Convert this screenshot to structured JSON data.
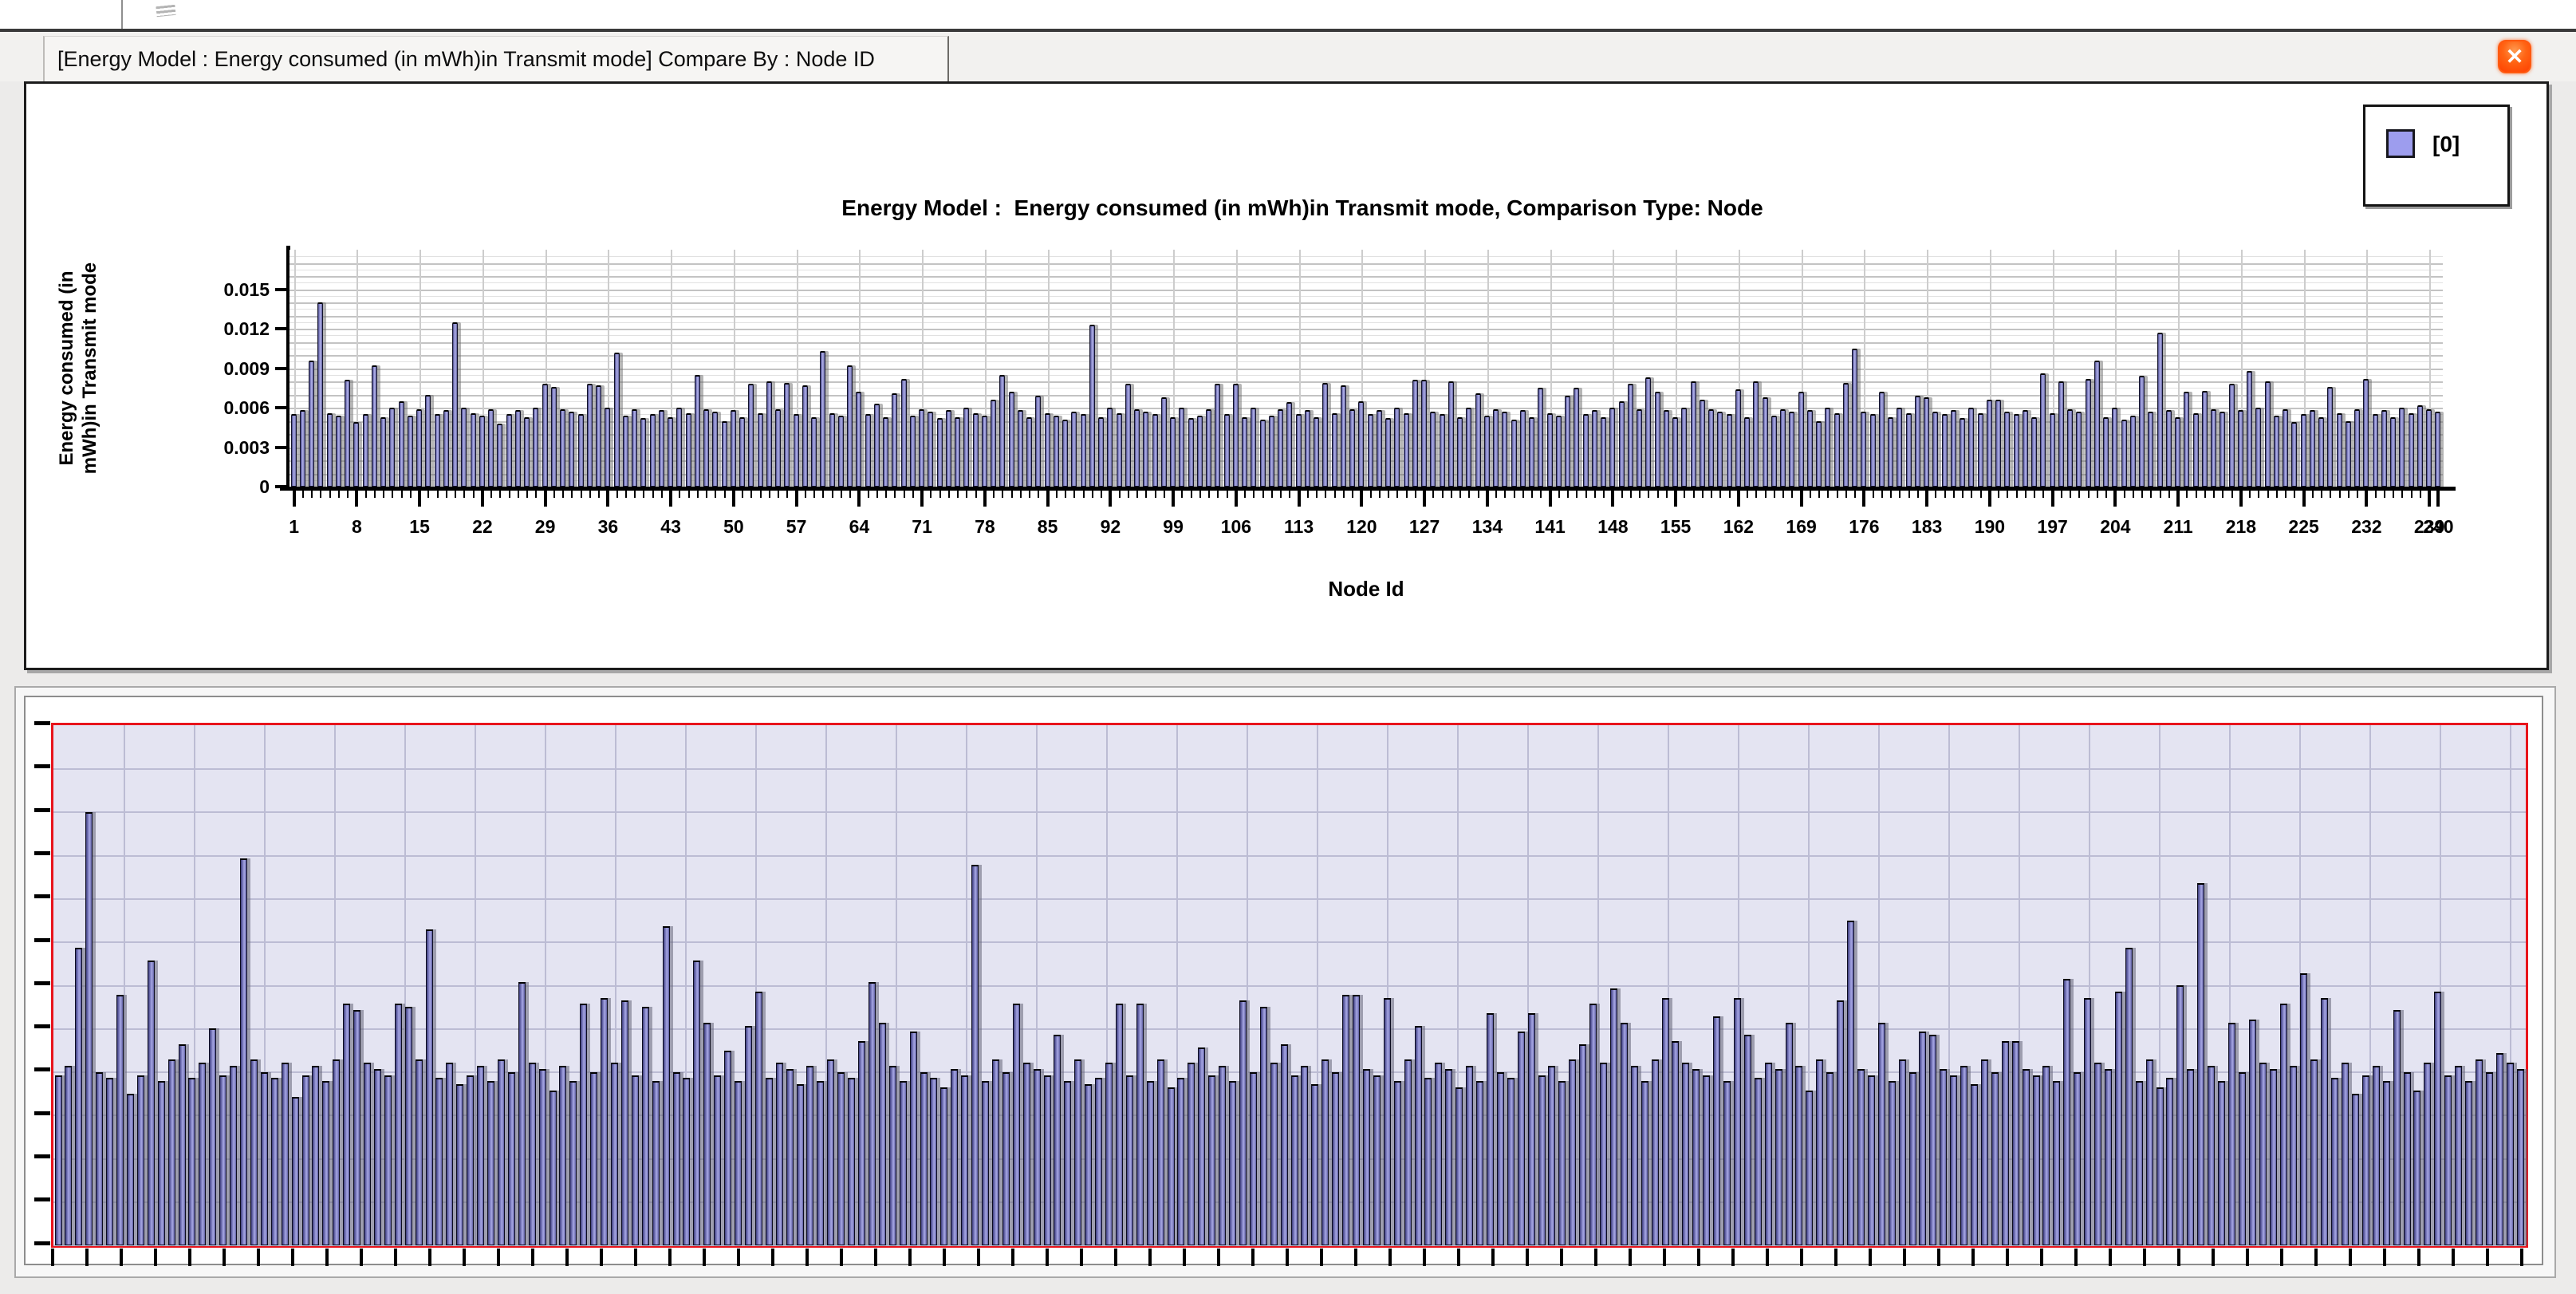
{
  "window": {
    "tab_title": "[Energy Model :  Energy consumed (in mWh)in Transmit mode] Compare By : Node ID",
    "close_glyph": "✕"
  },
  "legend": {
    "entries": [
      {
        "label": "[0]",
        "swatch_color": "#9d9dee"
      }
    ]
  },
  "chart_data": {
    "type": "bar",
    "title": "Energy Model :  Energy consumed (in mWh)in Transmit mode, Comparison Type: Node",
    "xlabel": "Node Id",
    "ylabel_lines": [
      "Energy consumed (in",
      "mWh)in Transmit mode"
    ],
    "y_ticks": [
      0,
      0.003,
      0.006,
      0.009,
      0.012,
      0.015
    ],
    "ylim": [
      0,
      0.018
    ],
    "n_nodes": 240,
    "first_node_id": 1,
    "grid": true,
    "legend_position": "top-right",
    "x_tick_nodes": [
      1,
      8,
      15,
      22,
      29,
      36,
      43,
      50,
      57,
      64,
      71,
      78,
      85,
      92,
      99,
      106,
      113,
      120,
      127,
      134,
      141,
      148,
      155,
      162,
      169,
      176,
      183,
      190,
      197,
      204,
      211,
      218,
      225,
      232,
      239,
      240
    ],
    "x_tick_labels": [
      "1",
      "8",
      "15",
      "22",
      "29",
      "36",
      "43",
      "50",
      "57",
      "64",
      "71",
      "78",
      "85",
      "92",
      "99",
      "106",
      "113",
      "120",
      "127",
      "134",
      "141",
      "148",
      "155",
      "162",
      "169",
      "176",
      "183",
      "190",
      "197",
      "204",
      "211",
      "218",
      "225",
      "232",
      "239",
      "240"
    ],
    "values": [
      0.0055,
      0.0058,
      0.0096,
      0.014,
      0.0056,
      0.0054,
      0.0081,
      0.0049,
      0.0055,
      0.0092,
      0.0053,
      0.006,
      0.0065,
      0.0054,
      0.0059,
      0.007,
      0.0055,
      0.0058,
      0.0125,
      0.006,
      0.0056,
      0.0054,
      0.0059,
      0.0048,
      0.0055,
      0.0058,
      0.0053,
      0.006,
      0.0078,
      0.0076,
      0.0059,
      0.0057,
      0.0055,
      0.0078,
      0.0077,
      0.006,
      0.0102,
      0.0054,
      0.0059,
      0.0052,
      0.0055,
      0.0058,
      0.0053,
      0.006,
      0.0056,
      0.0085,
      0.0059,
      0.0057,
      0.005,
      0.0058,
      0.0053,
      0.0078,
      0.0056,
      0.008,
      0.0059,
      0.0079,
      0.0055,
      0.0077,
      0.0053,
      0.0103,
      0.0056,
      0.0054,
      0.0092,
      0.0072,
      0.0055,
      0.0063,
      0.0053,
      0.0071,
      0.0082,
      0.0054,
      0.0059,
      0.0057,
      0.0052,
      0.0058,
      0.0053,
      0.006,
      0.0056,
      0.0054,
      0.0066,
      0.0085,
      0.0072,
      0.0058,
      0.0053,
      0.0069,
      0.0056,
      0.0054,
      0.0051,
      0.0057,
      0.0055,
      0.0123,
      0.0053,
      0.006,
      0.0056,
      0.0078,
      0.0059,
      0.0057,
      0.0055,
      0.0068,
      0.0053,
      0.006,
      0.0052,
      0.0054,
      0.0059,
      0.0078,
      0.0055,
      0.0078,
      0.0053,
      0.006,
      0.0051,
      0.0054,
      0.0059,
      0.0064,
      0.0055,
      0.0058,
      0.0053,
      0.0079,
      0.0056,
      0.0077,
      0.0059,
      0.0065,
      0.0055,
      0.0058,
      0.0052,
      0.006,
      0.0056,
      0.0081,
      0.0081,
      0.0057,
      0.0055,
      0.008,
      0.0053,
      0.006,
      0.0071,
      0.0054,
      0.0059,
      0.0057,
      0.0051,
      0.0058,
      0.0053,
      0.0075,
      0.0056,
      0.0054,
      0.0069,
      0.0075,
      0.0055,
      0.0058,
      0.0053,
      0.006,
      0.0065,
      0.0078,
      0.0059,
      0.0083,
      0.0072,
      0.0058,
      0.0053,
      0.006,
      0.008,
      0.0066,
      0.0059,
      0.0057,
      0.0055,
      0.0074,
      0.0053,
      0.008,
      0.0068,
      0.0054,
      0.0059,
      0.0057,
      0.0072,
      0.0058,
      0.005,
      0.006,
      0.0056,
      0.0079,
      0.0105,
      0.0057,
      0.0055,
      0.0072,
      0.0053,
      0.006,
      0.0056,
      0.0069,
      0.0068,
      0.0057,
      0.0055,
      0.0058,
      0.0052,
      0.006,
      0.0056,
      0.0066,
      0.0066,
      0.0057,
      0.0055,
      0.0058,
      0.0053,
      0.0086,
      0.0056,
      0.008,
      0.0059,
      0.0057,
      0.0082,
      0.0096,
      0.0053,
      0.006,
      0.0051,
      0.0054,
      0.0084,
      0.0057,
      0.0117,
      0.0058,
      0.0053,
      0.0072,
      0.0056,
      0.0073,
      0.0059,
      0.0057,
      0.0078,
      0.0058,
      0.0088,
      0.006,
      0.008,
      0.0054,
      0.0059,
      0.0049,
      0.0055,
      0.0058,
      0.0053,
      0.0076,
      0.0056,
      0.005,
      0.0059,
      0.0082,
      0.0055,
      0.0058,
      0.0053,
      0.006,
      0.0056,
      0.0062,
      0.0059,
      0.0057
    ]
  },
  "preview": {
    "selection_border_color": "#e8141c",
    "background": "#e4e4f2",
    "ylim": [
      0,
      0.0168
    ]
  }
}
